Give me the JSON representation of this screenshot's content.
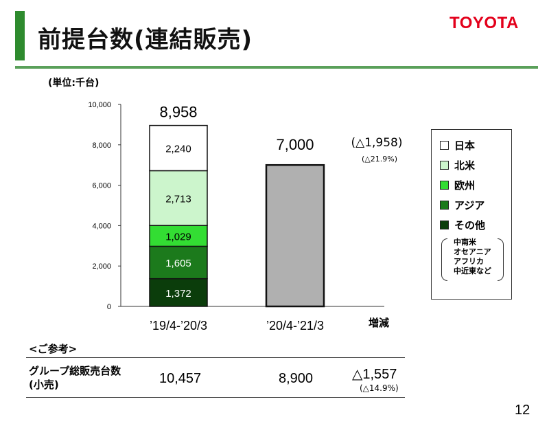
{
  "header": {
    "title": "前提台数(連結販売)",
    "logo": "TOYOTA"
  },
  "unit_label": "(単位:千台)",
  "chart_data": {
    "type": "bar",
    "ylim": [
      0,
      10000
    ],
    "y_ticks": [
      "0",
      "2,000",
      "4,000",
      "6,000",
      "8,000",
      "10,000"
    ],
    "categories": [
      "’19/4-’20/3",
      "’20/4-’21/3"
    ],
    "stacked_series": [
      {
        "name": "その他",
        "values": [
          1372,
          null
        ],
        "labels": [
          "1,372",
          ""
        ],
        "color": "#0b3d0b"
      },
      {
        "name": "アジア",
        "values": [
          1605,
          null
        ],
        "labels": [
          "1,605",
          ""
        ],
        "color": "#1c7a1c"
      },
      {
        "name": "欧州",
        "values": [
          1029,
          null
        ],
        "labels": [
          "1,029",
          ""
        ],
        "color": "#33dd33"
      },
      {
        "name": "北米",
        "values": [
          2713,
          null
        ],
        "labels": [
          "2,713",
          ""
        ],
        "color": "#ccf5cc"
      },
      {
        "name": "日本",
        "values": [
          2240,
          null
        ],
        "labels": [
          "2,240",
          ""
        ],
        "color": "#ffffff"
      }
    ],
    "totals": [
      8958,
      7000
    ],
    "total_labels": [
      "8,958",
      "7,000"
    ],
    "total_bar_color": "#b0b0b0",
    "change_label": "増減",
    "change_value": "(△1,958)",
    "change_pct": "(△21.9%)"
  },
  "legend": {
    "items": [
      {
        "label": "日本",
        "color": "#ffffff"
      },
      {
        "label": "北米",
        "color": "#ccf5cc"
      },
      {
        "label": "欧州",
        "color": "#33dd33"
      },
      {
        "label": "アジア",
        "color": "#1c7a1c"
      },
      {
        "label": "その他",
        "color": "#0b3d0b"
      }
    ],
    "note": [
      "中南米",
      "オセアニア",
      "アフリカ",
      "中近東など"
    ]
  },
  "reference": {
    "title": "<ご参考>",
    "label_line1": "グループ総販売台数",
    "label_line2": "(小売)",
    "value_prev": "10,457",
    "value_curr": "8,900",
    "change": "△1,557",
    "change_pct": "(△14.9%)"
  },
  "page_number": "12"
}
